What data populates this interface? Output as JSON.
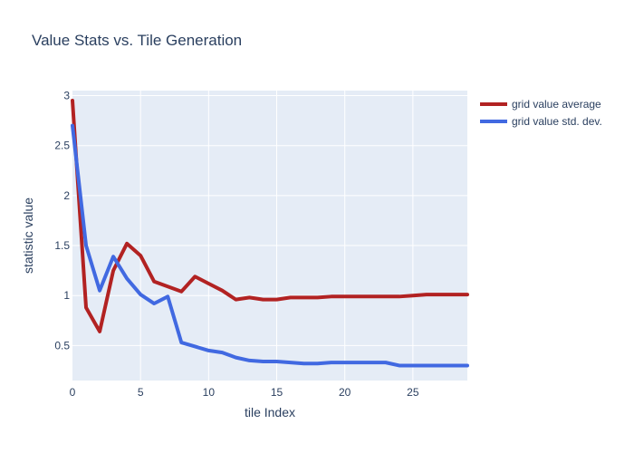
{
  "chart_data": {
    "type": "line",
    "title": "Value Stats vs. Tile Generation",
    "xlabel": "tile Index",
    "ylabel": "statistic value",
    "xlim": [
      0,
      29
    ],
    "ylim": [
      0.15,
      3.05
    ],
    "x_ticks": [
      0,
      5,
      10,
      15,
      20,
      25
    ],
    "y_ticks": [
      0.5,
      1,
      1.5,
      2,
      2.5,
      3
    ],
    "grid": true,
    "legend_position": "top-right",
    "x": [
      0,
      1,
      2,
      3,
      4,
      5,
      6,
      7,
      8,
      9,
      10,
      11,
      12,
      13,
      14,
      15,
      16,
      17,
      18,
      19,
      20,
      21,
      22,
      23,
      24,
      25,
      26,
      27,
      28,
      29
    ],
    "series": [
      {
        "name": "grid value average",
        "color": "#b22222",
        "values": [
          2.95,
          0.88,
          0.64,
          1.25,
          1.52,
          1.4,
          1.14,
          1.09,
          1.04,
          1.19,
          1.12,
          1.05,
          0.96,
          0.98,
          0.96,
          0.96,
          0.98,
          0.98,
          0.98,
          0.99,
          0.99,
          0.99,
          0.99,
          0.99,
          0.99,
          1.0,
          1.01,
          1.01,
          1.01,
          1.01
        ]
      },
      {
        "name": "grid value std. dev.",
        "color": "#4169e1",
        "values": [
          2.7,
          1.5,
          1.05,
          1.39,
          1.17,
          1.01,
          0.92,
          0.99,
          0.53,
          0.49,
          0.45,
          0.43,
          0.38,
          0.35,
          0.34,
          0.34,
          0.33,
          0.32,
          0.32,
          0.33,
          0.33,
          0.33,
          0.33,
          0.33,
          0.3,
          0.3,
          0.3,
          0.3,
          0.3,
          0.3
        ]
      }
    ]
  }
}
